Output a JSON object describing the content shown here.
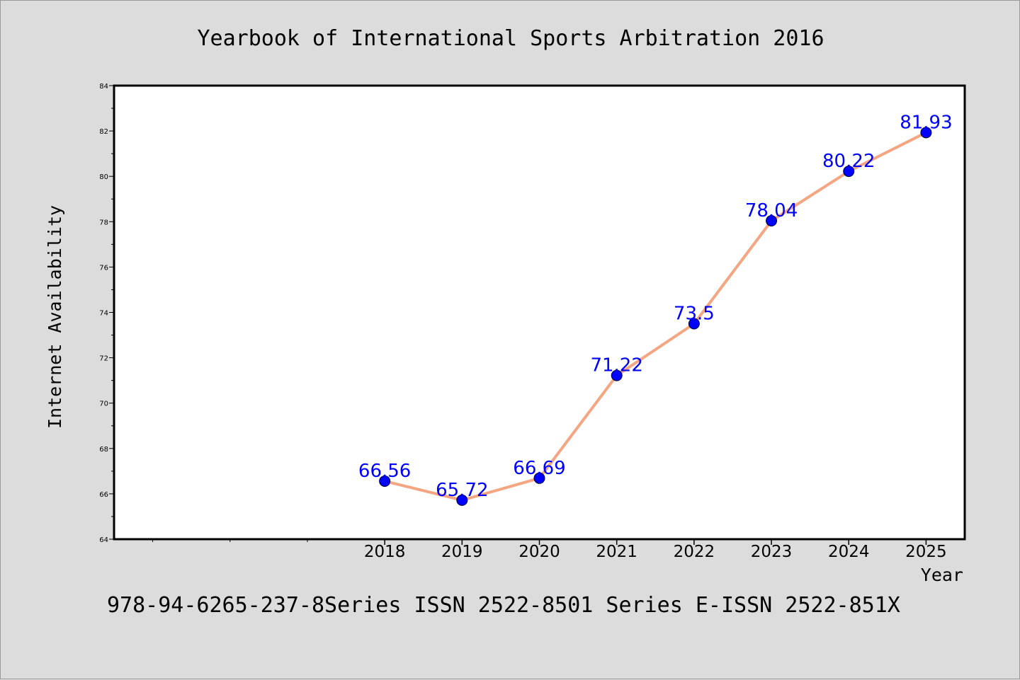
{
  "title": "Yearbook of International Sports Arbitration 2016",
  "footer": "978-94-6265-237-8Series ISSN 2522-8501 Series E-ISSN 2522-851X",
  "colors": {
    "background": "#dcdcdc",
    "plot_background": "#ffffff",
    "line": "#f4a582",
    "marker": "#0000ff",
    "data_label": "#0000ff"
  },
  "chart_data": {
    "type": "line",
    "title": "Yearbook of International Sports Arbitration 2016",
    "xlabel": "Year",
    "ylabel": "Internet Availability",
    "x": [
      2018,
      2019,
      2020,
      2021,
      2022,
      2023,
      2024,
      2025
    ],
    "x_tick_labels": [
      "2018",
      "2019",
      "2020",
      "2021",
      "2022",
      "2023",
      "2024",
      "2025"
    ],
    "xlim": [
      2014.5,
      2025.5
    ],
    "ylim": [
      64,
      84
    ],
    "y_ticks": [
      64,
      66,
      68,
      70,
      72,
      74,
      76,
      78,
      80,
      82,
      84
    ],
    "series": [
      {
        "values": [
          66.56,
          65.72,
          66.69,
          71.22,
          73.5,
          78.04,
          80.22,
          81.93
        ],
        "labels": [
          "66.56",
          "65.72",
          "66.69",
          "71.22",
          "73.5",
          "78.04",
          "80.22",
          "81.93"
        ]
      }
    ],
    "grid": false,
    "legend": "none"
  }
}
